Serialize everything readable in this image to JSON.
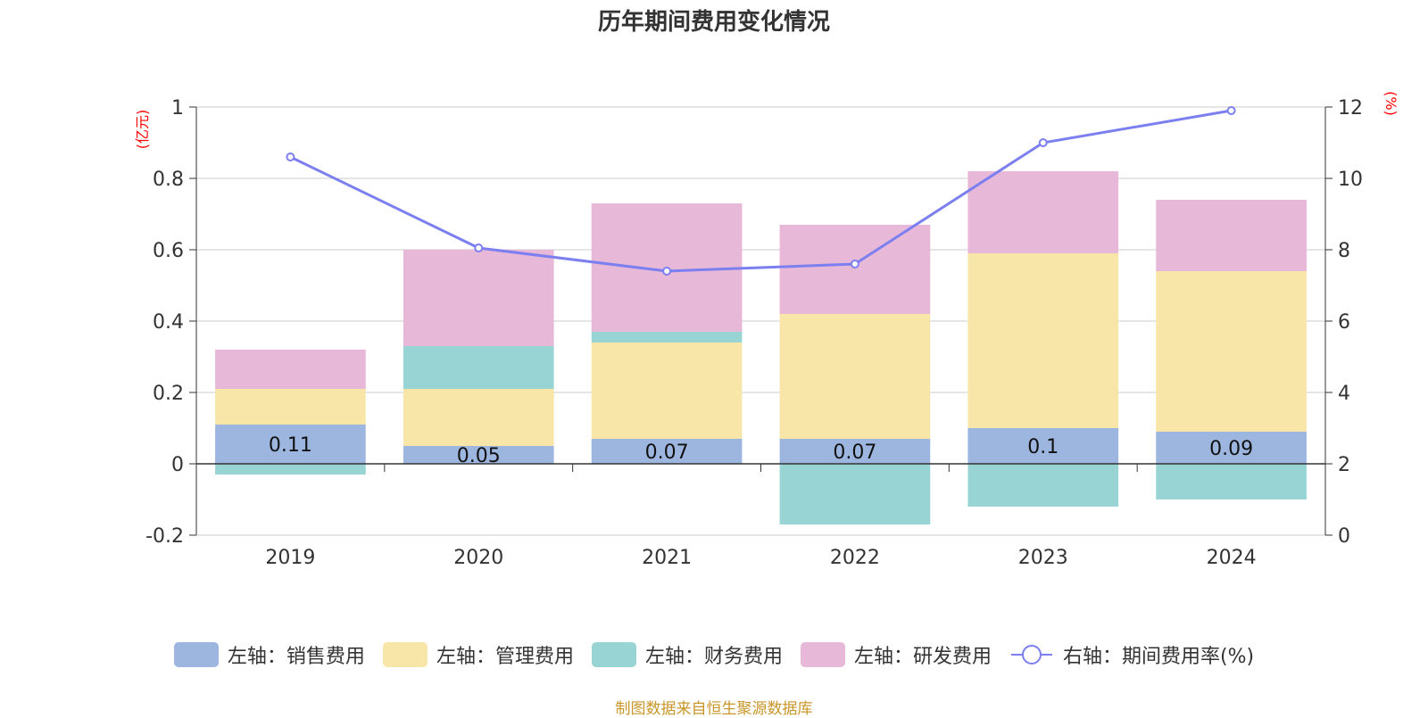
{
  "chart_data": {
    "type": "bar",
    "title": "历年期间费用变化情况",
    "categories": [
      "2019",
      "2020",
      "2021",
      "2022",
      "2023",
      "2024"
    ],
    "series": [
      {
        "name": "左轴：销售费用",
        "axis": "left",
        "color": "#9db6e0",
        "values": [
          0.11,
          0.05,
          0.07,
          0.07,
          0.1,
          0.09
        ],
        "show_labels": true
      },
      {
        "name": "左轴：管理费用",
        "axis": "left",
        "color": "#f8e6a8",
        "values": [
          0.1,
          0.16,
          0.27,
          0.35,
          0.49,
          0.45
        ]
      },
      {
        "name": "左轴：财务费用",
        "axis": "left",
        "color": "#98d4d4",
        "values": [
          -0.03,
          0.12,
          0.03,
          -0.17,
          -0.12,
          -0.1
        ]
      },
      {
        "name": "左轴：研发费用",
        "axis": "left",
        "color": "#e8b8d8",
        "values": [
          0.11,
          0.27,
          0.36,
          0.25,
          0.23,
          0.2
        ]
      },
      {
        "name": "右轴：期间费用率(%)",
        "axis": "right",
        "type": "line",
        "color": "#7b7ff0",
        "values": [
          10.6,
          8.05,
          7.4,
          7.6,
          11.0,
          11.9
        ]
      }
    ],
    "y_left": {
      "unit": "(亿元)",
      "ylim": [
        -0.2,
        1
      ],
      "ticks": [
        "-0.2",
        "0",
        "0.2",
        "0.4",
        "0.6",
        "0.8",
        "1"
      ]
    },
    "y_right": {
      "unit": "(%)",
      "ylim": [
        0,
        12
      ],
      "ticks": [
        "0",
        "2",
        "4",
        "6",
        "8",
        "10",
        "12"
      ]
    },
    "grid": true,
    "legend_position": "bottom"
  },
  "source_note": "制图数据来自恒生聚源数据库"
}
